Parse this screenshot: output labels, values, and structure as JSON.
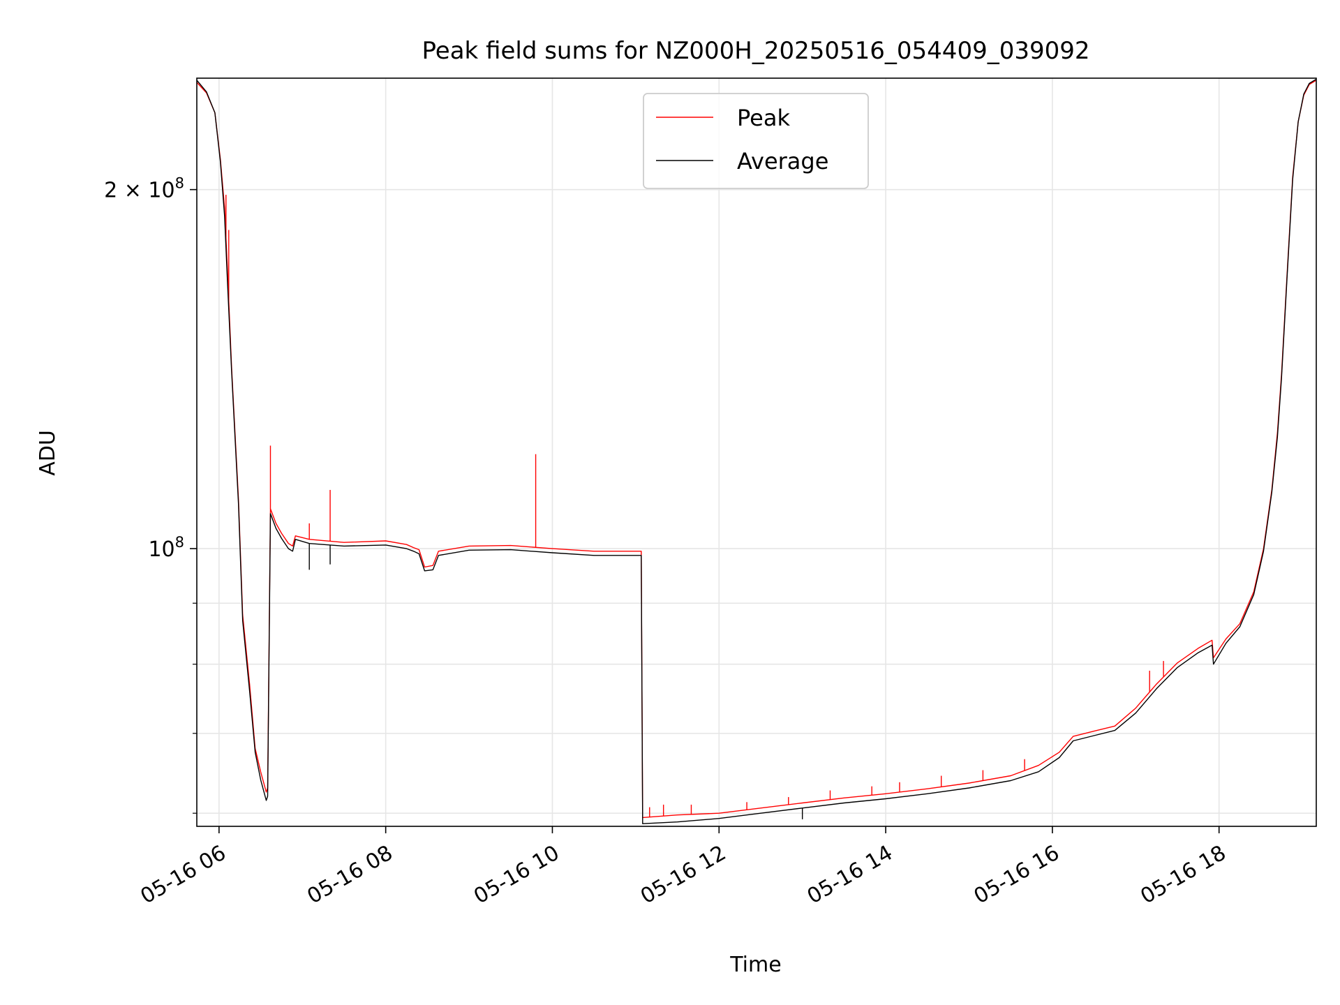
{
  "chart_data": {
    "type": "line",
    "title": "Peak field sums for NZ000H_20250516_054409_039092",
    "xlabel": "Time",
    "ylabel": "ADU",
    "x_ticks": [
      "05-16 06",
      "05-16 08",
      "05-16 10",
      "05-16 12",
      "05-16 14",
      "05-16 16",
      "05-16 18"
    ],
    "y_ticks": [
      "2 × 10⁸",
      "10⁸"
    ],
    "y_tick_base": [
      {
        "mantissa": "2",
        "times": "×",
        "base": "10",
        "exp": "8"
      },
      {
        "mantissa": "",
        "times": "",
        "base": "10",
        "exp": "8"
      }
    ],
    "y_scale": "log",
    "grid": true,
    "legend_position": "top-center",
    "xlim": [
      "2025-05-16 05:44",
      "2025-05-16 19:10"
    ],
    "ylim": [
      58500000,
      248000000
    ],
    "series": [
      {
        "name": "Peak",
        "color": "#ff0000",
        "points": [
          [
            "2025-05-16 05:44",
            246000000
          ],
          [
            "2025-05-16 05:51",
            241000000
          ],
          [
            "2025-05-16 05:57",
            232000000
          ],
          [
            "2025-05-16 06:01",
            212000000
          ],
          [
            "2025-05-16 06:04",
            193000000
          ],
          [
            "2025-05-16 06:06",
            172000000
          ],
          [
            "2025-05-16 06:09",
            142000000
          ],
          [
            "2025-05-16 06:14",
            110000000
          ],
          [
            "2025-05-16 06:17",
            88000000
          ],
          [
            "2025-05-16 06:22",
            77000000
          ],
          [
            "2025-05-16 06:26",
            68000000
          ],
          [
            "2025-05-16 06:30",
            65000000
          ],
          [
            "2025-05-16 06:34",
            62500000
          ],
          [
            "2025-05-16 06:35",
            63000000
          ],
          [
            "2025-05-16 06:37",
            108000000
          ],
          [
            "2025-05-16 06:41",
            105000000
          ],
          [
            "2025-05-16 06:45",
            103000000
          ],
          [
            "2025-05-16 06:50",
            101000000
          ],
          [
            "2025-05-16 06:53",
            100500000
          ],
          [
            "2025-05-16 06:55",
            102500000
          ],
          [
            "2025-05-16 07:05",
            101800000
          ],
          [
            "2025-05-16 07:30",
            101200000
          ],
          [
            "2025-05-16 08:00",
            101500000
          ],
          [
            "2025-05-16 08:15",
            100800000
          ],
          [
            "2025-05-16 08:20",
            100200000
          ],
          [
            "2025-05-16 08:24",
            99800000
          ],
          [
            "2025-05-16 08:28",
            96500000
          ],
          [
            "2025-05-16 08:34",
            96800000
          ],
          [
            "2025-05-16 08:38",
            99500000
          ],
          [
            "2025-05-16 09:00",
            100500000
          ],
          [
            "2025-05-16 09:30",
            100600000
          ],
          [
            "2025-05-16 10:00",
            100000000
          ],
          [
            "2025-05-16 10:30",
            99500000
          ],
          [
            "2025-05-16 11:04",
            99500000
          ],
          [
            "2025-05-16 11:05",
            59500000
          ],
          [
            "2025-05-16 11:30",
            59800000
          ],
          [
            "2025-05-16 12:00",
            60000000
          ],
          [
            "2025-05-16 12:30",
            60600000
          ],
          [
            "2025-05-16 13:00",
            61200000
          ],
          [
            "2025-05-16 13:30",
            61800000
          ],
          [
            "2025-05-16 14:00",
            62300000
          ],
          [
            "2025-05-16 14:30",
            62900000
          ],
          [
            "2025-05-16 15:00",
            63600000
          ],
          [
            "2025-05-16 15:30",
            64500000
          ],
          [
            "2025-05-16 15:50",
            65800000
          ],
          [
            "2025-05-16 16:05",
            67500000
          ],
          [
            "2025-05-16 16:15",
            69600000
          ],
          [
            "2025-05-16 16:30",
            70300000
          ],
          [
            "2025-05-16 16:45",
            71000000
          ],
          [
            "2025-05-16 17:00",
            73500000
          ],
          [
            "2025-05-16 17:15",
            77000000
          ],
          [
            "2025-05-16 17:30",
            80200000
          ],
          [
            "2025-05-16 17:45",
            82500000
          ],
          [
            "2025-05-16 17:55",
            83800000
          ],
          [
            "2025-05-16 17:56",
            81000000
          ],
          [
            "2025-05-16 18:05",
            84000000
          ],
          [
            "2025-05-16 18:15",
            86500000
          ],
          [
            "2025-05-16 18:25",
            92000000
          ],
          [
            "2025-05-16 18:32",
            100000000
          ],
          [
            "2025-05-16 18:38",
            112000000
          ],
          [
            "2025-05-16 18:42",
            125000000
          ],
          [
            "2025-05-16 18:45",
            140000000
          ],
          [
            "2025-05-16 18:49",
            170000000
          ],
          [
            "2025-05-16 18:53",
            205000000
          ],
          [
            "2025-05-16 18:57",
            228000000
          ],
          [
            "2025-05-16 19:01",
            240000000
          ],
          [
            "2025-05-16 19:05",
            245000000
          ],
          [
            "2025-05-16 19:10",
            247000000
          ]
        ],
        "spikes": [
          [
            "2025-05-16 06:05",
            198000000
          ],
          [
            "2025-05-16 06:07",
            185000000
          ],
          [
            "2025-05-16 06:37",
            122000000
          ],
          [
            "2025-05-16 07:05",
            105000000
          ],
          [
            "2025-05-16 07:20",
            112000000
          ],
          [
            "2025-05-16 09:48",
            120000000
          ],
          [
            "2025-05-16 11:10",
            60700000
          ],
          [
            "2025-05-16 11:20",
            61000000
          ],
          [
            "2025-05-16 11:40",
            61000000
          ],
          [
            "2025-05-16 12:20",
            61300000
          ],
          [
            "2025-05-16 12:50",
            61900000
          ],
          [
            "2025-05-16 13:20",
            62700000
          ],
          [
            "2025-05-16 13:50",
            63200000
          ],
          [
            "2025-05-16 14:10",
            63700000
          ],
          [
            "2025-05-16 14:40",
            64500000
          ],
          [
            "2025-05-16 15:10",
            65200000
          ],
          [
            "2025-05-16 15:40",
            66600000
          ],
          [
            "2025-05-16 17:10",
            79000000
          ],
          [
            "2025-05-16 17:20",
            80500000
          ]
        ]
      },
      {
        "name": "Average",
        "color": "#000000",
        "points": [
          [
            "2025-05-16 05:44",
            247000000
          ],
          [
            "2025-05-16 05:51",
            241500000
          ],
          [
            "2025-05-16 05:57",
            232000000
          ],
          [
            "2025-05-16 06:01",
            211000000
          ],
          [
            "2025-05-16 06:04",
            190000000
          ],
          [
            "2025-05-16 06:06",
            168000000
          ],
          [
            "2025-05-16 06:09",
            141000000
          ],
          [
            "2025-05-16 06:14",
            109000000
          ],
          [
            "2025-05-16 06:17",
            87000000
          ],
          [
            "2025-05-16 06:22",
            76000000
          ],
          [
            "2025-05-16 06:26",
            67500000
          ],
          [
            "2025-05-16 06:30",
            64000000
          ],
          [
            "2025-05-16 06:34",
            61500000
          ],
          [
            "2025-05-16 06:35",
            62000000
          ],
          [
            "2025-05-16 06:37",
            107000000
          ],
          [
            "2025-05-16 06:41",
            104000000
          ],
          [
            "2025-05-16 06:45",
            102000000
          ],
          [
            "2025-05-16 06:50",
            100000000
          ],
          [
            "2025-05-16 06:53",
            99500000
          ],
          [
            "2025-05-16 06:55",
            101800000
          ],
          [
            "2025-05-16 07:05",
            101000000
          ],
          [
            "2025-05-16 07:30",
            100500000
          ],
          [
            "2025-05-16 08:00",
            100700000
          ],
          [
            "2025-05-16 08:15",
            100000000
          ],
          [
            "2025-05-16 08:20",
            99500000
          ],
          [
            "2025-05-16 08:24",
            99000000
          ],
          [
            "2025-05-16 08:28",
            95800000
          ],
          [
            "2025-05-16 08:34",
            96000000
          ],
          [
            "2025-05-16 08:38",
            98700000
          ],
          [
            "2025-05-16 09:00",
            99700000
          ],
          [
            "2025-05-16 09:30",
            99800000
          ],
          [
            "2025-05-16 10:00",
            99200000
          ],
          [
            "2025-05-16 10:30",
            98700000
          ],
          [
            "2025-05-16 11:04",
            98700000
          ],
          [
            "2025-05-16 11:05",
            58800000
          ],
          [
            "2025-05-16 11:30",
            59000000
          ],
          [
            "2025-05-16 12:00",
            59400000
          ],
          [
            "2025-05-16 12:30",
            60000000
          ],
          [
            "2025-05-16 13:00",
            60600000
          ],
          [
            "2025-05-16 13:30",
            61200000
          ],
          [
            "2025-05-16 14:00",
            61700000
          ],
          [
            "2025-05-16 14:30",
            62300000
          ],
          [
            "2025-05-16 15:00",
            63000000
          ],
          [
            "2025-05-16 15:30",
            63900000
          ],
          [
            "2025-05-16 15:50",
            65000000
          ],
          [
            "2025-05-16 16:05",
            66800000
          ],
          [
            "2025-05-16 16:15",
            69000000
          ],
          [
            "2025-05-16 16:30",
            69700000
          ],
          [
            "2025-05-16 16:45",
            70400000
          ],
          [
            "2025-05-16 17:00",
            72800000
          ],
          [
            "2025-05-16 17:15",
            76300000
          ],
          [
            "2025-05-16 17:30",
            79500000
          ],
          [
            "2025-05-16 17:45",
            81800000
          ],
          [
            "2025-05-16 17:55",
            83000000
          ],
          [
            "2025-05-16 17:56",
            80000000
          ],
          [
            "2025-05-16 18:05",
            83300000
          ],
          [
            "2025-05-16 18:15",
            86000000
          ],
          [
            "2025-05-16 18:25",
            91500000
          ],
          [
            "2025-05-16 18:32",
            99500000
          ],
          [
            "2025-05-16 18:38",
            111500000
          ],
          [
            "2025-05-16 18:42",
            124000000
          ],
          [
            "2025-05-16 18:45",
            139000000
          ],
          [
            "2025-05-16 18:49",
            169000000
          ],
          [
            "2025-05-16 18:53",
            204000000
          ],
          [
            "2025-05-16 18:57",
            228000000
          ],
          [
            "2025-05-16 19:01",
            240500000
          ],
          [
            "2025-05-16 19:05",
            245500000
          ],
          [
            "2025-05-16 19:10",
            247500000
          ]
        ],
        "spikes": [
          [
            "2025-05-16 07:05",
            96000000
          ],
          [
            "2025-05-16 07:20",
            97000000
          ],
          [
            "2025-05-16 13:00",
            59300000
          ]
        ]
      }
    ]
  }
}
